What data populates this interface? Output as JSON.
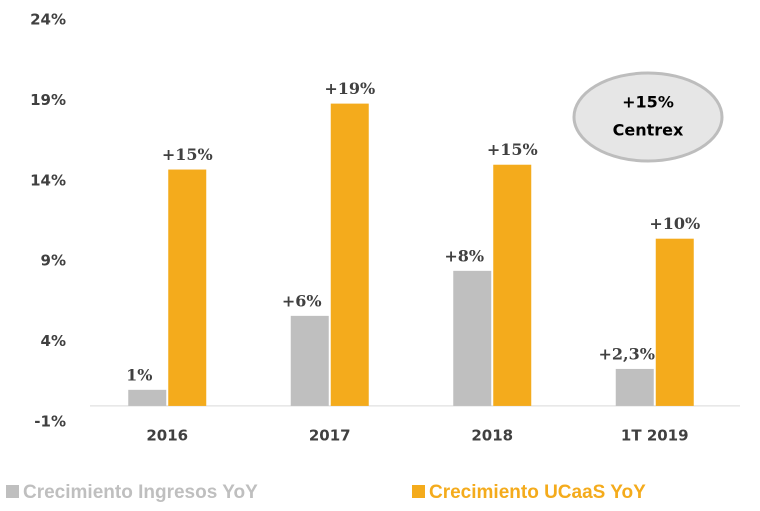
{
  "chart_data": {
    "type": "bar",
    "categories": [
      "2016",
      "2017",
      "2018",
      "1T 2019"
    ],
    "series": [
      {
        "name": "Crecimiento Ingresos YoY",
        "color": "#bfbfbf",
        "values": [
          1,
          5.6,
          8.4,
          2.3
        ],
        "value_labels": [
          "1%",
          "+6%",
          "+8%",
          "+2,3%"
        ]
      },
      {
        "name": "Crecimiento UCaaS YoY",
        "color": "#f4ab1c",
        "values": [
          14.7,
          18.8,
          15.0,
          10.4
        ],
        "value_labels": [
          "+15%",
          "+19%",
          "+15%",
          "+10%"
        ]
      }
    ],
    "ylim": [
      -1,
      24
    ],
    "yticks": [
      {
        "value": -1,
        "label": "-1%"
      },
      {
        "value": 4,
        "label": "4%"
      },
      {
        "value": 9,
        "label": "9%"
      },
      {
        "value": 14,
        "label": "14%"
      },
      {
        "value": 19,
        "label": "19%"
      },
      {
        "value": 24,
        "label": "24%"
      }
    ],
    "annotation": [
      "+15%",
      "Centrex"
    ],
    "legend": "bottom"
  }
}
